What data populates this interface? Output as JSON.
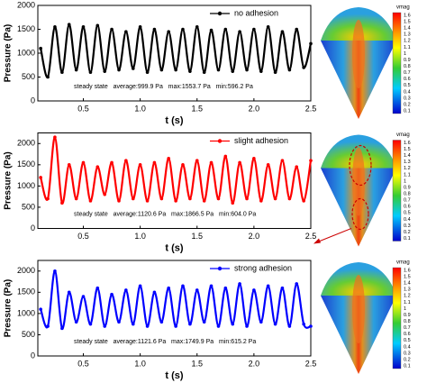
{
  "chart_data": [
    {
      "type": "line",
      "xlabel": "t (s)",
      "ylabel": "Pressure (Pa)",
      "annotation": "steady state   average:999.9 Pa   max:1553.7 Pa   min:596.2 Pa",
      "legend": "upper right",
      "xlim": [
        0.1,
        2.5
      ],
      "xticks": [
        0.5,
        {
          "value": 1,
          "label": "1.0"
        },
        1.5,
        {
          "value": 2,
          "label": "2.0"
        },
        2.5
      ],
      "ylim": [
        0,
        2000
      ],
      "yticks": [
        0,
        500,
        1000,
        1500,
        2000
      ],
      "x": [
        0.125,
        0.188,
        0.25,
        0.313,
        0.375,
        0.438,
        0.5,
        0.563,
        0.625,
        0.688,
        0.75,
        0.813,
        0.875,
        0.938,
        1,
        1.063,
        1.125,
        1.188,
        1.25,
        1.313,
        1.375,
        1.438,
        1.5,
        1.563,
        1.625,
        1.688,
        1.75,
        1.813,
        1.875,
        1.938,
        2,
        2.063,
        2.125,
        2.188,
        2.25,
        2.313,
        2.375,
        2.438,
        2.5
      ],
      "series": [
        {
          "name": "no adhesion",
          "color": "#000000",
          "values": [
            1100,
            500,
            1550,
            600,
            1600,
            650,
            1550,
            600,
            1580,
            620,
            1500,
            650,
            1450,
            680,
            1550,
            600,
            1500,
            650,
            1450,
            650,
            1500,
            620,
            1550,
            600,
            1480,
            650,
            1500,
            620,
            1450,
            650,
            1500,
            620,
            1550,
            600,
            1450,
            650,
            1500,
            700,
            1200
          ]
        }
      ]
    },
    {
      "type": "line",
      "xlabel": "t (s)",
      "ylabel": "Pressure (Pa)",
      "annotation": "steady state   average:1120.6 Pa   max:1866.5 Pa   min:604.0 Pa",
      "legend": "upper right",
      "xlim": [
        0.1,
        2.5
      ],
      "xticks": [
        0.5,
        {
          "value": 1,
          "label": "1.0"
        },
        1.5,
        {
          "value": 2,
          "label": "2.0"
        },
        2.5
      ],
      "ylim": [
        0,
        2250
      ],
      "yticks": [
        0,
        500,
        1000,
        1500,
        2000
      ],
      "x": [
        0.125,
        0.188,
        0.25,
        0.313,
        0.375,
        0.438,
        0.5,
        0.563,
        0.625,
        0.688,
        0.75,
        0.813,
        0.875,
        0.938,
        1,
        1.063,
        1.125,
        1.188,
        1.25,
        1.313,
        1.375,
        1.438,
        1.5,
        1.563,
        1.625,
        1.688,
        1.75,
        1.813,
        1.875,
        1.938,
        2,
        2.063,
        2.125,
        2.188,
        2.25,
        2.313,
        2.375,
        2.438,
        2.5
      ],
      "series": [
        {
          "name": "slight adhesion",
          "color": "#ff0000",
          "values": [
            1200,
            700,
            2150,
            600,
            1500,
            700,
            1550,
            650,
            1450,
            800,
            1550,
            650,
            1600,
            700,
            1500,
            650,
            1550,
            700,
            1650,
            650,
            1500,
            700,
            1600,
            650,
            1550,
            700,
            1700,
            600,
            1550,
            700,
            1650,
            650,
            1500,
            700,
            1600,
            700,
            1450,
            650,
            1600
          ]
        }
      ]
    },
    {
      "type": "line",
      "xlabel": "t (s)",
      "ylabel": "Pressure (Pa)",
      "annotation": "steady state   average:1121.6 Pa   max:1749.9 Pa   min:615.2 Pa",
      "legend": "upper right",
      "xlim": [
        0.1,
        2.5
      ],
      "xticks": [
        0.5,
        {
          "value": 1,
          "label": "1.0"
        },
        1.5,
        {
          "value": 2,
          "label": "2.0"
        },
        2.5
      ],
      "ylim": [
        0,
        2250
      ],
      "yticks": [
        0,
        500,
        1000,
        1500,
        2000
      ],
      "x": [
        0.125,
        0.188,
        0.25,
        0.313,
        0.375,
        0.438,
        0.5,
        0.563,
        0.625,
        0.688,
        0.75,
        0.813,
        0.875,
        0.938,
        1,
        1.063,
        1.125,
        1.188,
        1.25,
        1.313,
        1.375,
        1.438,
        1.5,
        1.563,
        1.625,
        1.688,
        1.75,
        1.813,
        1.875,
        1.938,
        2,
        2.063,
        2.125,
        2.188,
        2.25,
        2.313,
        2.375,
        2.438,
        2.5
      ],
      "series": [
        {
          "name": "strong adhesion",
          "color": "#0000ff",
          "values": [
            1100,
            700,
            2000,
            650,
            1500,
            800,
            1400,
            750,
            1600,
            700,
            1450,
            800,
            1550,
            750,
            1650,
            700,
            1500,
            800,
            1600,
            700,
            1650,
            750,
            1550,
            800,
            1650,
            700,
            1600,
            750,
            1700,
            700,
            1550,
            800,
            1650,
            750,
            1600,
            700,
            1700,
            750,
            700
          ]
        }
      ]
    }
  ],
  "images": [
    {
      "colorbar_title": "vmag",
      "colorbar_labels": [
        1.6,
        1.5,
        1.4,
        1.3,
        1.2,
        1.1,
        1,
        0.9,
        0.8,
        0.7,
        0.6,
        0.5,
        0.4,
        0.3,
        0.2,
        0.1
      ]
    },
    {
      "colorbar_title": "vmag",
      "colorbar_labels": [
        1.6,
        1.5,
        1.4,
        1.3,
        1.2,
        1.1,
        1,
        0.9,
        0.8,
        0.7,
        0.6,
        0.5,
        0.4,
        0.3,
        0.2,
        0.1
      ]
    },
    {
      "colorbar_title": "vmag",
      "colorbar_labels": [
        1.6,
        1.5,
        1.4,
        1.3,
        1.2,
        1.1,
        1,
        0.9,
        0.8,
        0.7,
        0.6,
        0.5,
        0.4,
        0.3,
        0.2,
        0.1
      ]
    }
  ]
}
